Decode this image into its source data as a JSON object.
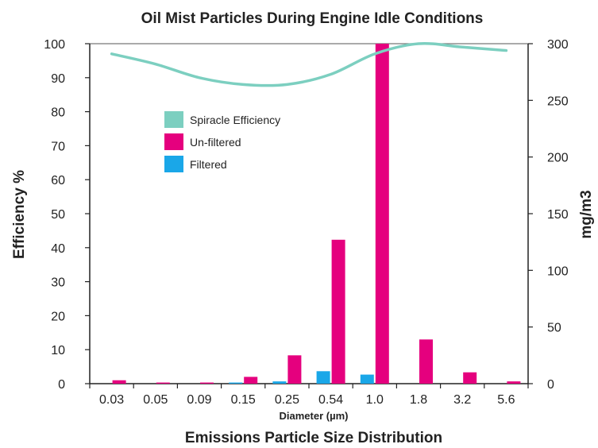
{
  "chart_data": {
    "type": "bar",
    "title": "Oil Mist Particles During Engine Idle Conditions",
    "bottom_title": "Emissions Particle Size Distribution",
    "xlabel": "Diameter (µm)",
    "ylabel_left": "Efficiency %",
    "ylabel_right": "mg/m3",
    "categories": [
      "0.03",
      "0.05",
      "0.09",
      "0.15",
      "0.25",
      "0.54",
      "1.0",
      "1.8",
      "3.2",
      "5.6"
    ],
    "y_left": {
      "min": 0,
      "max": 100,
      "ticks": [
        0,
        10,
        20,
        30,
        40,
        50,
        60,
        70,
        80,
        90,
        100
      ]
    },
    "y_right": {
      "min": 0,
      "max": 300,
      "ticks": [
        0,
        50,
        100,
        150,
        200,
        250,
        300
      ]
    },
    "grid": false,
    "legend_position": "upper-left",
    "series": [
      {
        "name": "Spiracle Efficiency",
        "kind": "line",
        "axis": "left",
        "color": "#7ccfc0",
        "values": [
          97,
          94,
          90,
          88,
          88,
          91,
          97,
          100,
          99,
          98
        ]
      },
      {
        "name": "Un-filtered",
        "kind": "bar",
        "axis": "right",
        "color": "#e5007e",
        "values": [
          3,
          1,
          1,
          6,
          25,
          127,
          300,
          39,
          10,
          2
        ]
      },
      {
        "name": "Filtered",
        "kind": "bar",
        "axis": "right",
        "color": "#1aa7e8",
        "values": [
          0,
          0,
          0,
          1,
          2,
          11,
          8,
          0,
          0,
          0
        ]
      }
    ]
  }
}
